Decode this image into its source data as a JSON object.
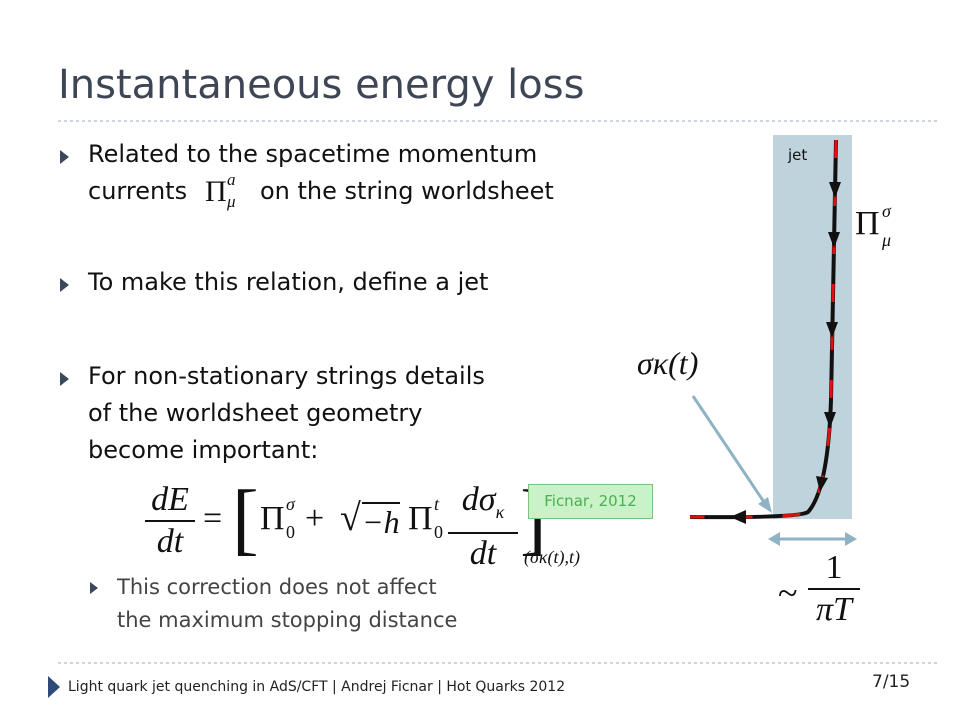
{
  "title": "Instantaneous energy loss",
  "bullets": [
    {
      "lines": [
        "Related to the spacetime momentum",
        "currents",
        "on the string worldsheet"
      ],
      "symbol": {
        "base": "Π",
        "sup": "a",
        "sub": "μ"
      }
    },
    {
      "lines": [
        "To make this relation, define a jet"
      ]
    },
    {
      "lines": [
        "For non-stationary strings details",
        "of the worldsheet geometry",
        "become important:"
      ]
    }
  ],
  "equation": {
    "lhs_num": "dE",
    "lhs_den": "dt",
    "eq": "=",
    "term1": {
      "base": "Π",
      "sup": "σ",
      "sub": "0"
    },
    "plus": "+",
    "sqrt": "−h",
    "term2": {
      "base": "Π",
      "sup": "t",
      "sub": "0"
    },
    "frac_num": {
      "base": "dσ",
      "sub": "κ"
    },
    "frac_den": "dt",
    "eval_at": "(σκ(t),t)"
  },
  "sub_bullet": {
    "lines": [
      "This correction does not affect",
      "the maximum stopping distance"
    ]
  },
  "figure": {
    "jet_label": "jet",
    "current": {
      "base": "Π",
      "sup": "σ",
      "sub": "μ"
    },
    "sigma": "σκ(t)",
    "citation": "Ficnar, 2012",
    "tilde": "~",
    "scale_num": "1",
    "scale_den": "πT"
  },
  "footer": {
    "text": "Light quark jet quenching in AdS/CFT  |  Andrej Ficnar  |  Hot Quarks 2012",
    "page": "7/15"
  }
}
